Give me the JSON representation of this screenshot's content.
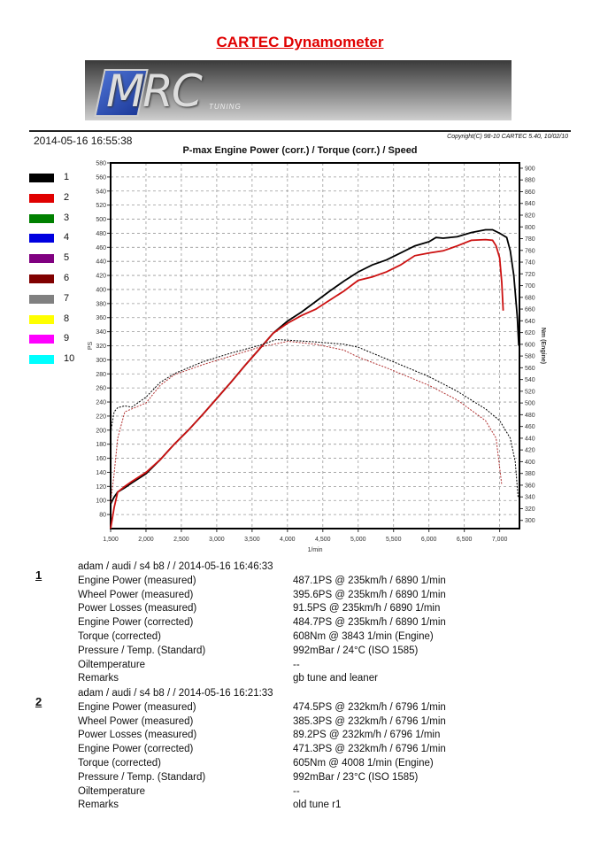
{
  "header": {
    "title": "CARTEC Dynamometer",
    "logo_text": "MRC",
    "logo_sub": "TUNING",
    "date": "2014-05-16 16:55:38",
    "copyright": "Copyright(C) 98-10 CARTEC 5.40, 10/02/10"
  },
  "legend": [
    {
      "label": "1",
      "color": "#000000"
    },
    {
      "label": "2",
      "color": "#e00000"
    },
    {
      "label": "3",
      "color": "#008000"
    },
    {
      "label": "4",
      "color": "#0000e0"
    },
    {
      "label": "5",
      "color": "#800080"
    },
    {
      "label": "6",
      "color": "#800000"
    },
    {
      "label": "7",
      "color": "#808080"
    },
    {
      "label": "8",
      "color": "#ffff00"
    },
    {
      "label": "9",
      "color": "#ff00ff"
    },
    {
      "label": "10",
      "color": "#00ffff"
    }
  ],
  "chart_data": {
    "type": "line",
    "title": "P-max Engine Power (corr.) / Torque (corr.) / Speed",
    "xlabel": "1/min",
    "ylabel": "PS",
    "y2label": "Nm (Engine)",
    "xlim": [
      1500,
      7280
    ],
    "ylim": [
      60,
      580
    ],
    "y2lim": [
      286,
      909
    ],
    "xticks": [
      1500,
      2000,
      2500,
      3000,
      3500,
      4000,
      4500,
      5000,
      5500,
      6000,
      6500,
      7000
    ],
    "xtick_labels": [
      "1,500",
      "2,000",
      "2,500",
      "3,000",
      "3,500",
      "4,000",
      "4,500",
      "5,000",
      "5,500",
      "6,000",
      "6,500",
      "7,000"
    ],
    "yticks": [
      80,
      100,
      120,
      140,
      160,
      180,
      200,
      220,
      240,
      260,
      280,
      300,
      320,
      340,
      360,
      380,
      400,
      420,
      440,
      460,
      480,
      500,
      520,
      540,
      560,
      580
    ],
    "y2ticks": [
      300,
      320,
      340,
      360,
      380,
      400,
      420,
      440,
      460,
      480,
      500,
      520,
      540,
      560,
      580,
      600,
      620,
      640,
      660,
      680,
      700,
      720,
      740,
      760,
      780,
      800,
      820,
      840,
      860,
      880,
      900
    ],
    "grid": true,
    "series": [
      {
        "name": "1 power",
        "axis": "left",
        "style": "solid",
        "color": "#000000",
        "x": [
          1500,
          1550,
          1600,
          1700,
          1800,
          2000,
          2200,
          2400,
          2600,
          2800,
          3000,
          3200,
          3400,
          3600,
          3800,
          4000,
          4200,
          4400,
          4600,
          4800,
          5000,
          5200,
          5400,
          5600,
          5800,
          6000,
          6100,
          6200,
          6400,
          6600,
          6800,
          6900,
          7000,
          7100,
          7150,
          7200,
          7250,
          7270
        ],
        "y": [
          95,
          105,
          112,
          118,
          125,
          138,
          158,
          180,
          200,
          222,
          245,
          268,
          292,
          315,
          338,
          355,
          368,
          383,
          398,
          412,
          425,
          435,
          442,
          452,
          462,
          468,
          474,
          473,
          475,
          481,
          485,
          485,
          480,
          474,
          455,
          420,
          360,
          320
        ]
      },
      {
        "name": "2 power",
        "axis": "left",
        "style": "solid",
        "color": "#cc1111",
        "x": [
          1500,
          1550,
          1600,
          1700,
          1800,
          2000,
          2200,
          2400,
          2600,
          2800,
          3000,
          3200,
          3400,
          3600,
          3800,
          4000,
          4200,
          4400,
          4600,
          4800,
          5000,
          5200,
          5400,
          5600,
          5800,
          6000,
          6200,
          6400,
          6600,
          6800,
          6900,
          6950,
          7000,
          7030,
          7050
        ],
        "y": [
          60,
          90,
          112,
          120,
          127,
          140,
          158,
          180,
          200,
          222,
          245,
          268,
          292,
          315,
          338,
          352,
          363,
          372,
          385,
          398,
          413,
          418,
          425,
          435,
          448,
          452,
          455,
          462,
          470,
          471,
          470,
          462,
          445,
          410,
          370
        ]
      },
      {
        "name": "1 torque",
        "axis": "right",
        "style": "dotted",
        "color": "#000000",
        "x": [
          1500,
          1550,
          1600,
          1700,
          1800,
          2000,
          2200,
          2400,
          2800,
          3200,
          3600,
          3843,
          4000,
          4400,
          4800,
          5000,
          5200,
          5600,
          6000,
          6400,
          6800,
          7000,
          7150,
          7220,
          7260
        ],
        "y": [
          450,
          485,
          492,
          495,
          493,
          510,
          535,
          550,
          570,
          585,
          598,
          608,
          607,
          604,
          600,
          595,
          585,
          565,
          545,
          520,
          490,
          470,
          440,
          400,
          340
        ]
      },
      {
        "name": "2 torque",
        "axis": "right",
        "style": "dotted",
        "color": "#b03030",
        "x": [
          1500,
          1550,
          1600,
          1700,
          1800,
          2000,
          2200,
          2400,
          2800,
          3200,
          3600,
          4008,
          4400,
          4800,
          5000,
          5400,
          5800,
          6000,
          6400,
          6800,
          6950,
          7000,
          7030
        ],
        "y": [
          330,
          380,
          440,
          485,
          490,
          500,
          530,
          548,
          565,
          580,
          595,
          605,
          600,
          590,
          578,
          560,
          540,
          530,
          505,
          470,
          440,
          390,
          360
        ]
      }
    ]
  },
  "runs": [
    {
      "number": "1",
      "header": "adam / audi / s4 b8 /  / 2014-05-16 16:46:33",
      "rows": [
        {
          "label": "Engine Power (measured)",
          "value": "487.1PS @ 235km/h / 6890 1/min"
        },
        {
          "label": "Wheel Power (measured)",
          "value": "395.6PS @ 235km/h / 6890 1/min"
        },
        {
          "label": "Power Losses (measured)",
          "value": "91.5PS @ 235km/h / 6890 1/min"
        },
        {
          "label": "Engine Power (corrected)",
          "value": "484.7PS @ 235km/h / 6890 1/min"
        },
        {
          "label": "Torque (corrected)",
          "value": "608Nm @ 3843 1/min (Engine)"
        },
        {
          "label": "Pressure / Temp. (Standard)",
          "value": "992mBar / 24°C   (ISO 1585)"
        },
        {
          "label": "Oiltemperature",
          "value": "--"
        },
        {
          "label": "Remarks",
          "value": "gb tune and leaner"
        }
      ]
    },
    {
      "number": "2",
      "header": "adam / audi / s4 b8 /  / 2014-05-16 16:21:33",
      "rows": [
        {
          "label": "Engine Power (measured)",
          "value": "474.5PS @ 232km/h / 6796 1/min"
        },
        {
          "label": "Wheel Power (measured)",
          "value": "385.3PS @ 232km/h / 6796 1/min"
        },
        {
          "label": "Power Losses (measured)",
          "value": "89.2PS @ 232km/h / 6796 1/min"
        },
        {
          "label": "Engine Power (corrected)",
          "value": "471.3PS @ 232km/h / 6796 1/min"
        },
        {
          "label": "Torque (corrected)",
          "value": "605Nm @ 4008 1/min (Engine)"
        },
        {
          "label": "Pressure / Temp. (Standard)",
          "value": "992mBar / 23°C   (ISO 1585)"
        },
        {
          "label": "Oiltemperature",
          "value": "--"
        },
        {
          "label": "Remarks",
          "value": "old tune r1"
        }
      ]
    }
  ]
}
